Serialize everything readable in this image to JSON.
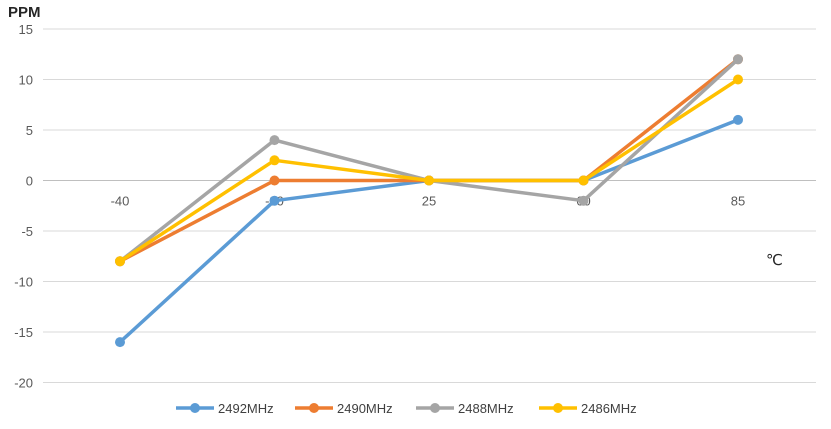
{
  "chart_data": {
    "type": "line",
    "ylabel": "PPM",
    "xunit": "℃",
    "categories": [
      "-40",
      "-20",
      "25",
      "60",
      "85"
    ],
    "ylim": [
      -20,
      15
    ],
    "yticks": [
      15,
      10,
      5,
      0,
      -5,
      -10,
      -15,
      -20
    ],
    "grid": true,
    "legend_position": "bottom",
    "series": [
      {
        "name": "2492MHz",
        "color": "#5B9BD5",
        "values": [
          -16,
          -2,
          0,
          0,
          6
        ]
      },
      {
        "name": "2490MHz",
        "color": "#ED7D31",
        "values": [
          -8,
          0,
          0,
          0,
          12
        ]
      },
      {
        "name": "2488MHz",
        "color": "#A5A5A5",
        "values": [
          -8,
          4,
          0,
          -2,
          12
        ]
      },
      {
        "name": "2486MHz",
        "color": "#FFC000",
        "values": [
          -8,
          2,
          0,
          0,
          10
        ]
      }
    ]
  }
}
